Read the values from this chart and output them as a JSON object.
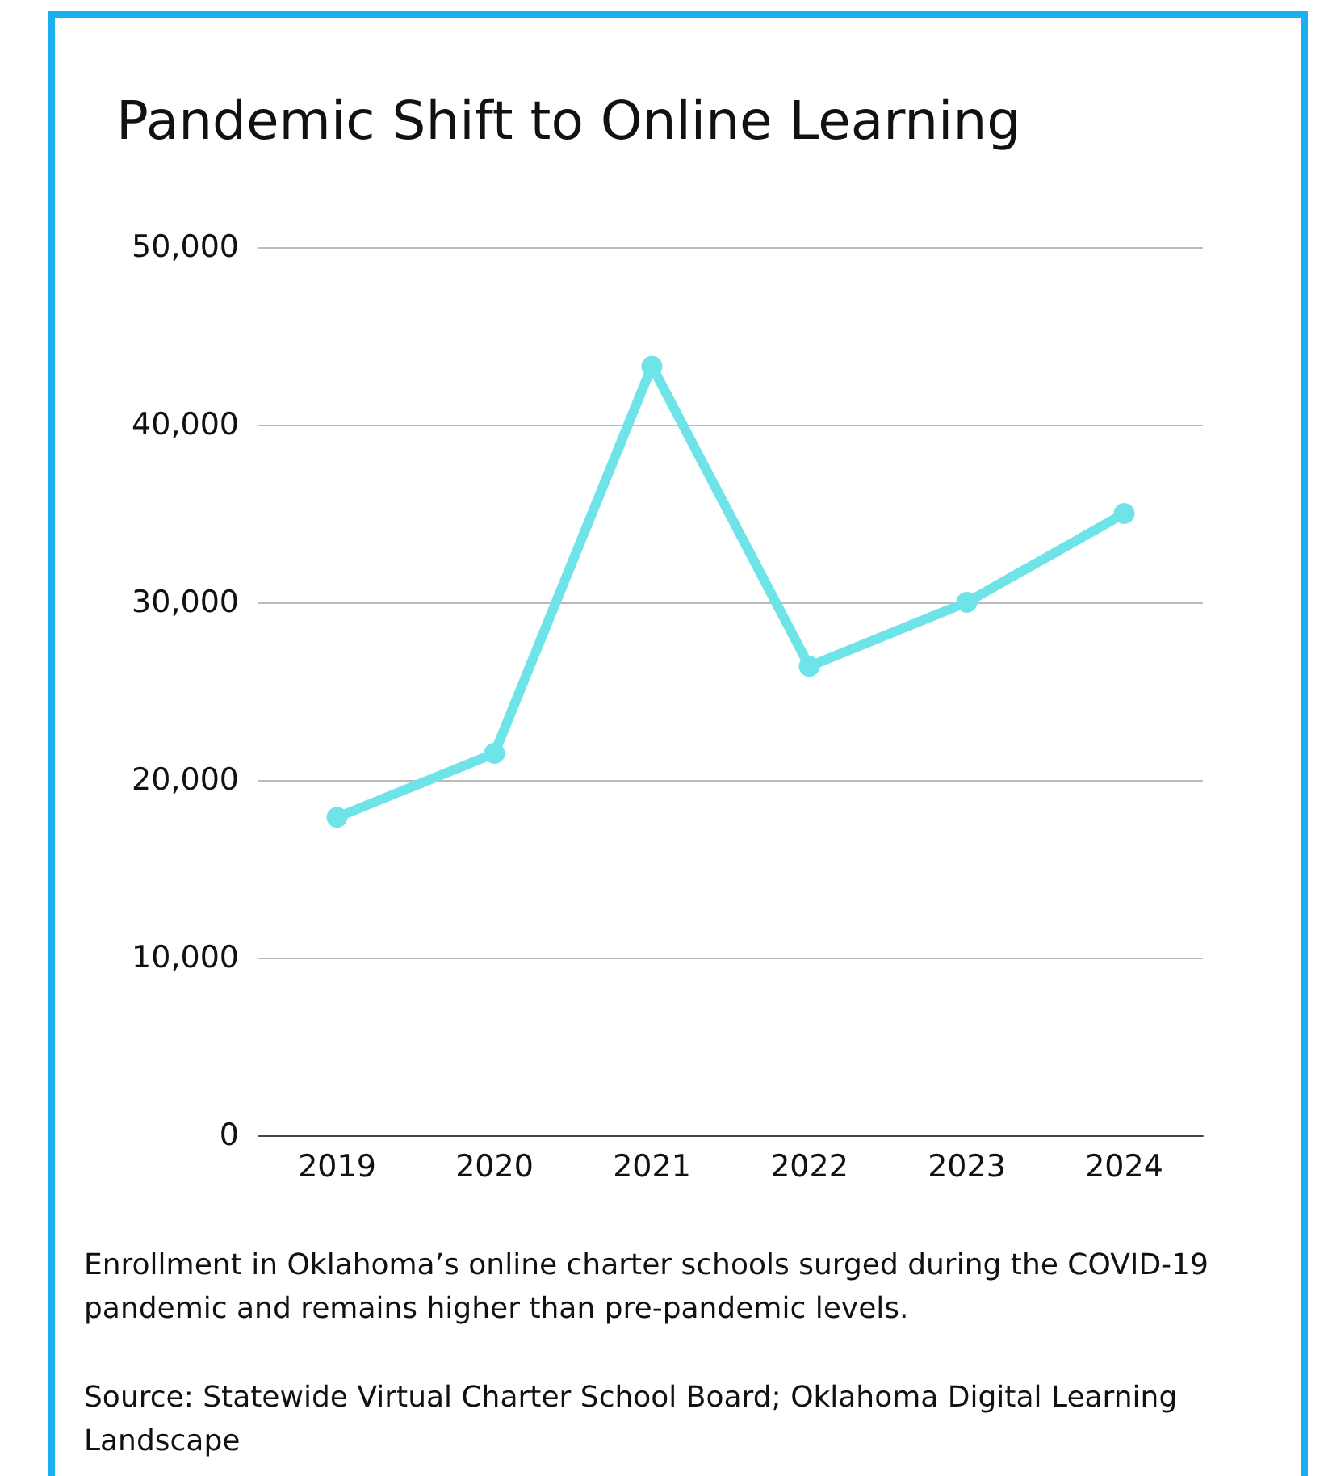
{
  "chart_data": {
    "type": "line",
    "title": "Pandemic Shift to Online Learning",
    "categories": [
      "2019",
      "2020",
      "2021",
      "2022",
      "2023",
      "2024"
    ],
    "series": [
      {
        "color": "#6ee3e8",
        "values": [
          17900,
          21500,
          43300,
          26400,
          30000,
          35000
        ]
      }
    ],
    "ylim": [
      0,
      50000
    ],
    "yticks": [
      {
        "value": 0,
        "label": "0"
      },
      {
        "value": 10000,
        "label": "10,000"
      },
      {
        "value": 20000,
        "label": "20,000"
      },
      {
        "value": 30000,
        "label": "30,000"
      },
      {
        "value": 40000,
        "label": "40,000"
      },
      {
        "value": 50000,
        "label": "50,000"
      }
    ],
    "grid": "y",
    "marker": "circle",
    "line_style": "solid",
    "annotations": [
      "Enrollment in Oklahoma’s online charter schools surged during the COVID-19 pandemic and remains higher than pre-pandemic levels.",
      "Source:  Statewide Virtual Charter School Board; Oklahoma Digital Learning Landscape"
    ]
  }
}
